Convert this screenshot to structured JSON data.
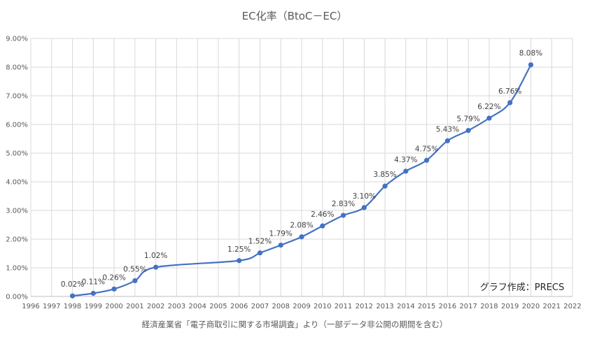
{
  "chart_data": {
    "type": "line",
    "title": "EC化率（BtoC－EC）",
    "xlabel": "",
    "ylabel": "",
    "xlim": [
      1996,
      2022
    ],
    "ylim": [
      0,
      9
    ],
    "x_ticks": [
      "1996",
      "1997",
      "1998",
      "1999",
      "2000",
      "2001",
      "2002",
      "2003",
      "2004",
      "2005",
      "2006",
      "2007",
      "2008",
      "2009",
      "2010",
      "2011",
      "2012",
      "2013",
      "2014",
      "2015",
      "2016",
      "2017",
      "2018",
      "2019",
      "2020",
      "2021",
      "2022"
    ],
    "y_ticks": [
      "0.00%",
      "1.00%",
      "2.00%",
      "3.00%",
      "4.00%",
      "5.00%",
      "6.00%",
      "7.00%",
      "8.00%",
      "9.00%"
    ],
    "grid": true,
    "series": [
      {
        "name": "EC化率",
        "color": "#4472C4",
        "x": [
          1998,
          1999,
          2000,
          2001,
          2002,
          2006,
          2007,
          2008,
          2009,
          2010,
          2011,
          2012,
          2013,
          2014,
          2015,
          2016,
          2017,
          2018,
          2019,
          2020
        ],
        "values": [
          0.02,
          0.11,
          0.26,
          0.55,
          1.02,
          1.25,
          1.52,
          1.79,
          2.08,
          2.46,
          2.83,
          3.1,
          3.85,
          4.37,
          4.75,
          5.43,
          5.79,
          6.22,
          6.76,
          8.08
        ],
        "labels": [
          "0.02%",
          "0.11%",
          "0.26%",
          "0.55%",
          "1.02%",
          "1.25%",
          "1.52%",
          "1.79%",
          "2.08%",
          "2.46%",
          "2.83%",
          "3.10%",
          "3.85%",
          "4.37%",
          "4.75%",
          "5.43%",
          "5.79%",
          "6.22%",
          "6.76%",
          "8.08%"
        ]
      }
    ],
    "annotation": "グラフ作成：PRECS",
    "source_note": "経済産業省「電子商取引に関する市場調査」より（一部データ非公開の期間を含む）"
  },
  "colors": {
    "line": "#4472C4",
    "grid": "#D9D9D9",
    "text": "#595959"
  }
}
